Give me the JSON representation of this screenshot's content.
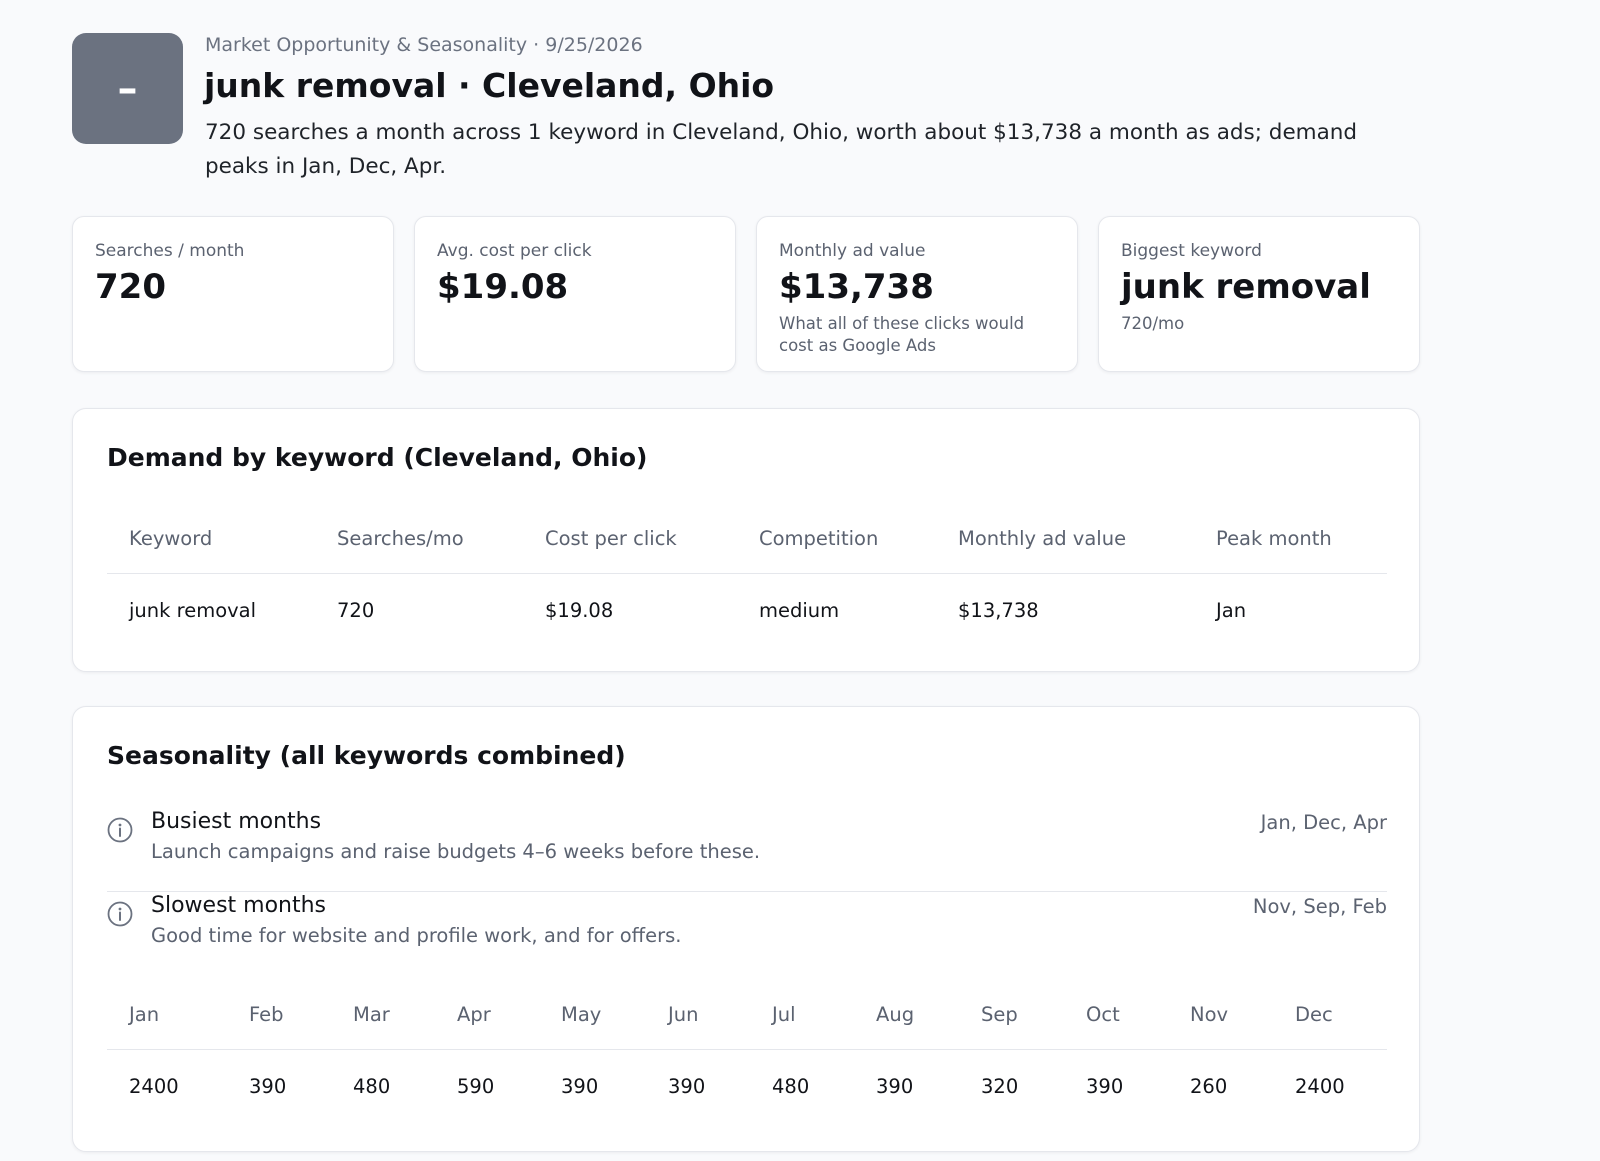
{
  "header": {
    "logo_glyph": "–",
    "eyebrow": "Market Opportunity & Seasonality · 9/25/2026",
    "title": "junk removal · Cleveland, Ohio",
    "summary": "720 searches a month across 1 keyword in Cleveland, Ohio, worth about $13,738 a month as ads; demand peaks in Jan, Dec, Apr."
  },
  "stats": [
    {
      "label": "Searches / month",
      "value": "720",
      "sub": ""
    },
    {
      "label": "Avg. cost per click",
      "value": "$19.08",
      "sub": ""
    },
    {
      "label": "Monthly ad value",
      "value": "$13,738",
      "sub": "What all of these clicks would cost as Google Ads"
    },
    {
      "label": "Biggest keyword",
      "value": "junk removal",
      "sub": "720/mo"
    }
  ],
  "keywords": {
    "title": "Demand by keyword (Cleveland, Ohio)",
    "columns": [
      "Keyword",
      "Searches/mo",
      "Cost per click",
      "Competition",
      "Monthly ad value",
      "Peak month"
    ],
    "rows": [
      [
        "junk removal",
        "720",
        "$19.08",
        "medium",
        "$13,738",
        "Jan"
      ]
    ]
  },
  "seasonality": {
    "title": "Seasonality (all keywords combined)",
    "busiest": {
      "title": "Busiest months",
      "desc": "Launch campaigns and raise budgets 4–6 weeks before these.",
      "months": "Jan, Dec, Apr"
    },
    "slowest": {
      "title": "Slowest months",
      "desc": "Good time for website and profile work, and for offers.",
      "months": "Nov, Sep, Feb"
    },
    "months": [
      "Jan",
      "Feb",
      "Mar",
      "Apr",
      "May",
      "Jun",
      "Jul",
      "Aug",
      "Sep",
      "Oct",
      "Nov",
      "Dec"
    ],
    "values": [
      "2400",
      "390",
      "480",
      "590",
      "390",
      "390",
      "480",
      "390",
      "320",
      "390",
      "260",
      "2400"
    ]
  },
  "colors": {
    "accent": "#6b7280",
    "muted_text": "#5b6270",
    "border": "#e5e7ec"
  }
}
